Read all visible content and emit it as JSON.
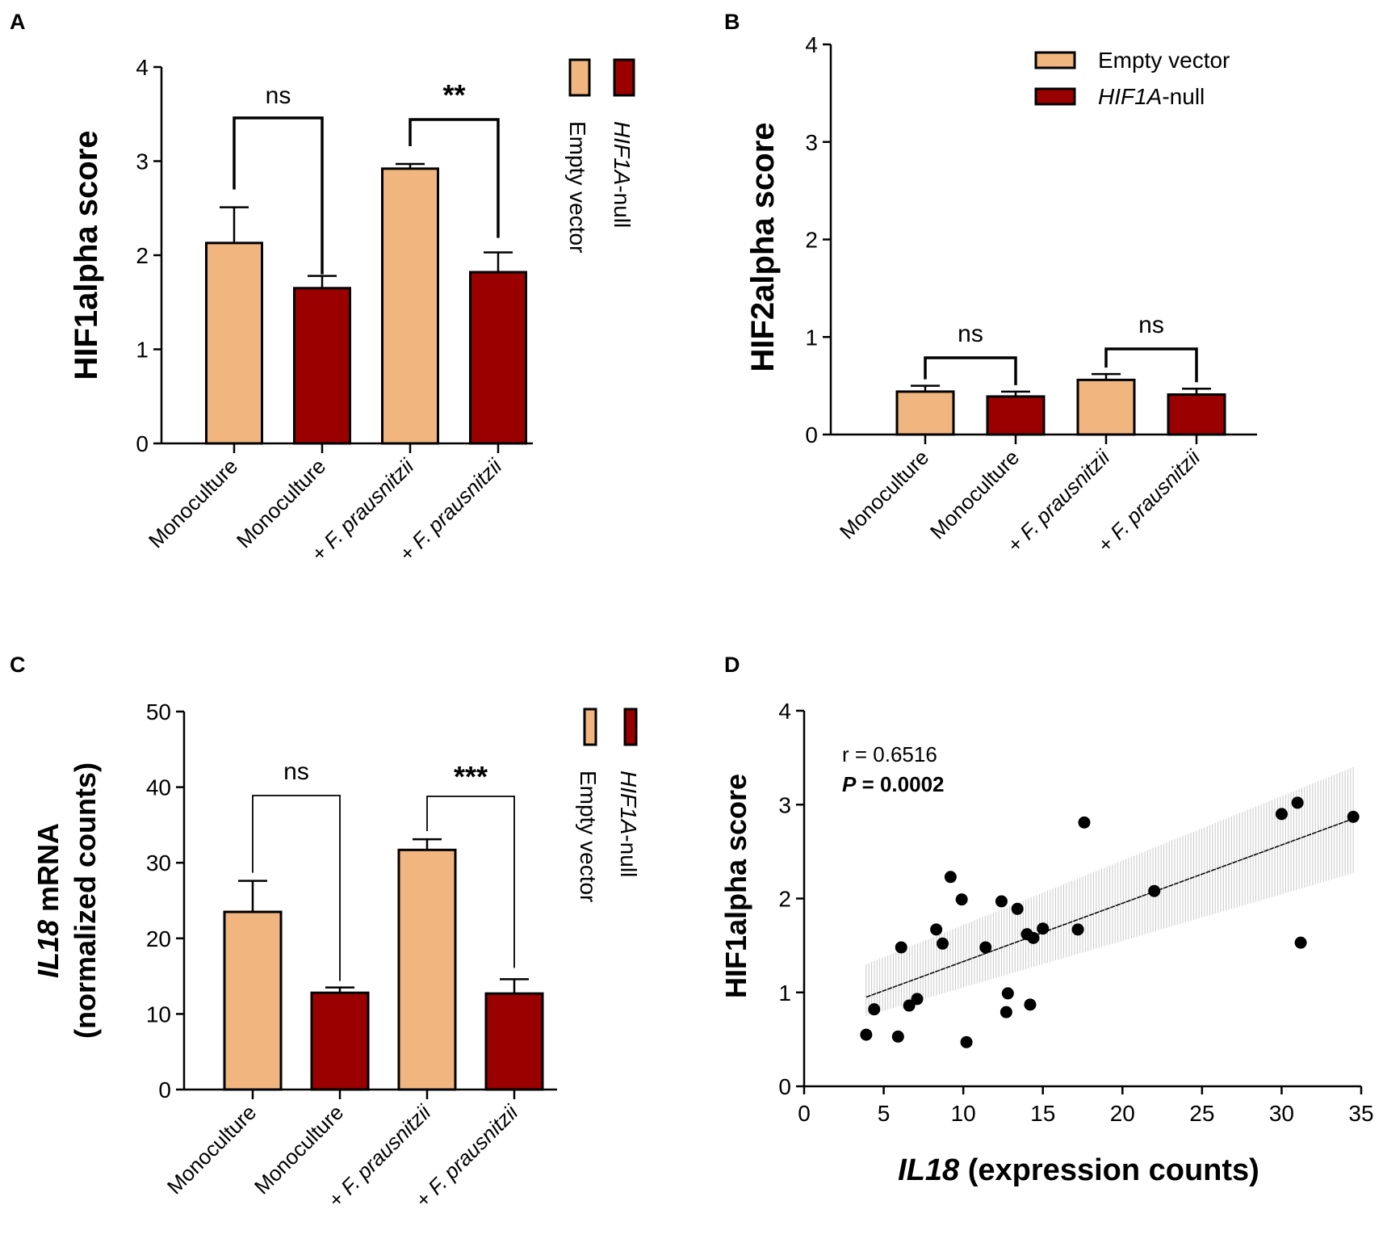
{
  "colors": {
    "empty": "#f1b67f",
    "null": "#9b0000",
    "ink": "#000000",
    "band": "#c8c8c8"
  },
  "chart_data": [
    {
      "panel": "A",
      "type": "bar",
      "ylabel": "HIF1alpha score",
      "ylim": [
        0,
        4
      ],
      "yticks": [
        "0",
        "1",
        "2",
        "3",
        "4"
      ],
      "categories": [
        "Monoculture",
        "Monoculture",
        "+ F. prausnitzii",
        "+ F. prausnitzii"
      ],
      "groups": [
        "empty",
        "null",
        "empty",
        "null"
      ],
      "values": [
        2.13,
        1.65,
        2.92,
        1.82
      ],
      "errors": [
        0.38,
        0.13,
        0.05,
        0.21
      ],
      "legend": {
        "empty": "Empty vector",
        "null_italic": "HIF1A",
        "null_rest": "-null"
      },
      "comparisons": [
        {
          "label": "ns",
          "from": 0,
          "to": 1
        },
        {
          "label": "**",
          "from": 2,
          "to": 3
        }
      ]
    },
    {
      "panel": "B",
      "type": "bar",
      "ylabel": "HIF2alpha score",
      "ylim": [
        0,
        4
      ],
      "yticks": [
        "0",
        "1",
        "2",
        "3",
        "4"
      ],
      "categories": [
        "Monoculture",
        "Monoculture",
        "+ F. prausnitzii",
        "+ F. prausnitzii"
      ],
      "groups": [
        "empty",
        "null",
        "empty",
        "null"
      ],
      "values": [
        0.44,
        0.39,
        0.56,
        0.41
      ],
      "errors": [
        0.06,
        0.05,
        0.06,
        0.06
      ],
      "legend": {
        "empty": "Empty vector",
        "null_italic": "HIF1A",
        "null_rest": "-null"
      },
      "comparisons": [
        {
          "label": "ns",
          "from": 0,
          "to": 1
        },
        {
          "label": "ns",
          "from": 2,
          "to": 3
        }
      ]
    },
    {
      "panel": "C",
      "type": "bar",
      "ylabel_italic": "IL18",
      "ylabel_rest": " mRNA",
      "ylabel_line2": "(normalized counts)",
      "ylim": [
        0,
        50
      ],
      "yticks": [
        "0",
        "10",
        "20",
        "30",
        "40",
        "50"
      ],
      "categories": [
        "Monoculture",
        "Monoculture",
        "+ F. prausnitzii",
        "+ F. prausnitzii"
      ],
      "groups": [
        "empty",
        "null",
        "empty",
        "null"
      ],
      "values": [
        23.5,
        12.8,
        31.7,
        12.7
      ],
      "errors": [
        4.1,
        0.7,
        1.4,
        1.9
      ],
      "legend": {
        "empty": "Empty vector",
        "null_italic": "HIF1A",
        "null_rest": "-null"
      },
      "comparisons": [
        {
          "label": "ns",
          "from": 0,
          "to": 1
        },
        {
          "label": "***",
          "from": 2,
          "to": 3
        }
      ]
    },
    {
      "panel": "D",
      "type": "scatter",
      "xlabel_italic": "IL18",
      "xlabel_rest": " (expression counts)",
      "ylabel": "HIF1alpha score",
      "xlim": [
        0,
        35
      ],
      "ylim": [
        0,
        4
      ],
      "xticks": [
        "0",
        "5",
        "10",
        "15",
        "20",
        "25",
        "30",
        "35"
      ],
      "yticks": [
        "0",
        "1",
        "2",
        "3",
        "4"
      ],
      "r_text": "r = 0.6516",
      "p_label": "P",
      "p_value": " = 0.0002",
      "fit": {
        "x": [
          3.9,
          34.5
        ],
        "y": [
          0.95,
          2.85
        ]
      },
      "band": {
        "lower": [
          0.75,
          2.27
        ],
        "upper": [
          1.3,
          3.4
        ]
      },
      "points": [
        [
          3.9,
          0.55
        ],
        [
          4.4,
          0.82
        ],
        [
          5.9,
          0.53
        ],
        [
          6.1,
          1.48
        ],
        [
          6.6,
          0.86
        ],
        [
          7.1,
          0.93
        ],
        [
          8.3,
          1.67
        ],
        [
          8.7,
          1.52
        ],
        [
          9.2,
          2.23
        ],
        [
          9.9,
          1.99
        ],
        [
          10.2,
          0.47
        ],
        [
          11.4,
          1.48
        ],
        [
          12.4,
          1.97
        ],
        [
          12.7,
          0.79
        ],
        [
          12.8,
          0.99
        ],
        [
          13.4,
          1.89
        ],
        [
          14.0,
          1.62
        ],
        [
          14.2,
          0.87
        ],
        [
          14.4,
          1.58
        ],
        [
          15.0,
          1.68
        ],
        [
          17.2,
          1.67
        ],
        [
          17.6,
          2.81
        ],
        [
          22.0,
          2.08
        ],
        [
          30.0,
          2.9
        ],
        [
          31.0,
          3.02
        ],
        [
          31.2,
          1.53
        ],
        [
          34.5,
          2.87
        ]
      ]
    }
  ]
}
